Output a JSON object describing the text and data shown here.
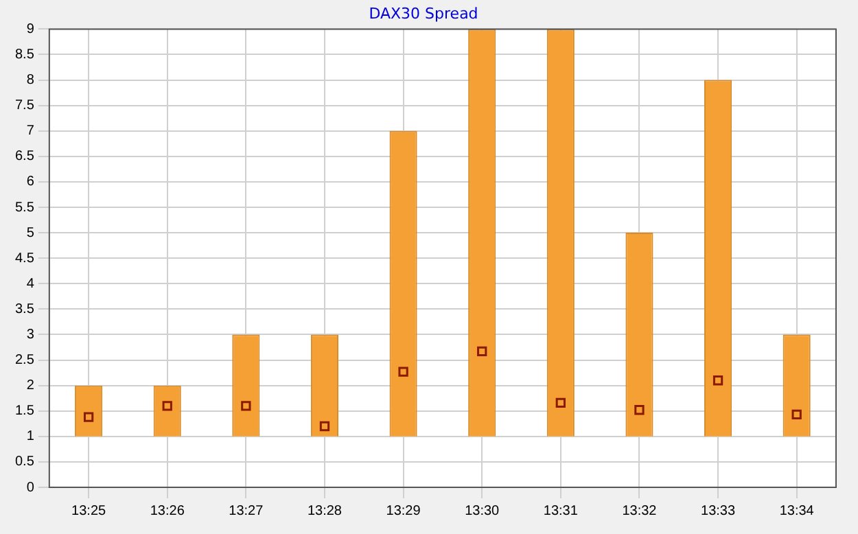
{
  "chart_data": {
    "type": "bar",
    "title": "DAX30 Spread",
    "categories": [
      "13:25",
      "13:26",
      "13:27",
      "13:28",
      "13:29",
      "13:30",
      "13:31",
      "13:32",
      "13:33",
      "13:34"
    ],
    "series": [
      {
        "color": "#f4a035",
        "base": [
          1,
          1,
          1,
          1,
          1,
          1,
          1,
          1,
          1,
          1
        ],
        "values": [
          1,
          1,
          2,
          2,
          6,
          8,
          8,
          4,
          7,
          2
        ]
      },
      {
        "type": "scatter",
        "color": "#8b1a00",
        "marker": "square",
        "x": [
          "13:25",
          "13:26",
          "13:27",
          "13:28",
          "13:29",
          "13:30",
          "13:31",
          "13:32",
          "13:33",
          "13:34"
        ],
        "values": [
          1.38,
          1.6,
          1.6,
          1.2,
          2.27,
          2.67,
          1.66,
          1.52,
          2.1,
          1.43
        ]
      }
    ],
    "ylim": [
      0,
      9
    ],
    "yticks": [
      0,
      0.5,
      1,
      1.5,
      2,
      2.5,
      3,
      3.5,
      4,
      4.5,
      5,
      5.5,
      6,
      6.5,
      7,
      7.5,
      8,
      8.5,
      9
    ],
    "grid": true,
    "legend": false
  }
}
